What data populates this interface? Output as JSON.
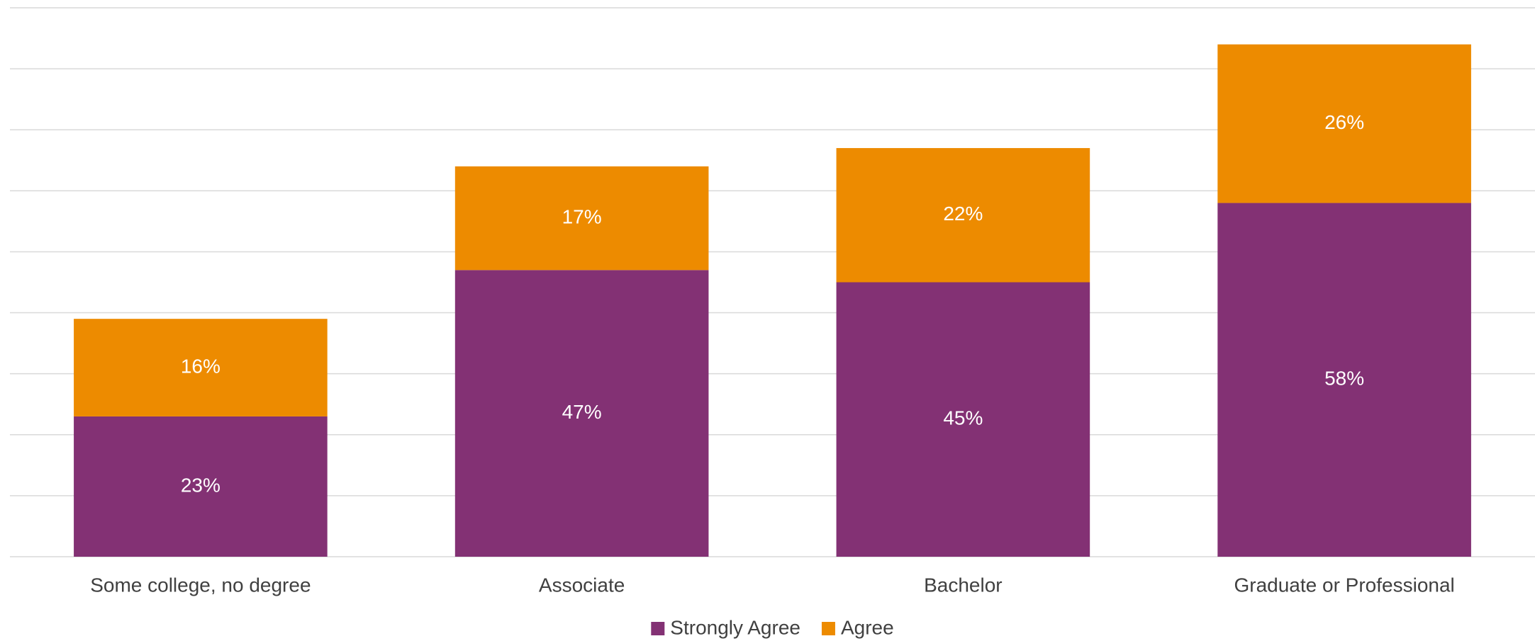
{
  "chart_data": {
    "type": "stacked_bar",
    "categories": [
      "Some college, no degree",
      "Associate",
      "Bachelor",
      "Graduate or Professional"
    ],
    "series": [
      {
        "name": "Strongly Agree",
        "color": "#833174",
        "values": [
          23,
          47,
          45,
          58
        ],
        "value_labels": [
          "23%",
          "47%",
          "45%",
          "58%"
        ]
      },
      {
        "name": "Agree",
        "color": "#ED8B00",
        "values": [
          16,
          17,
          22,
          26
        ],
        "value_labels": [
          "16%",
          "17%",
          "22%",
          "26%"
        ]
      }
    ],
    "ylim": [
      0,
      90
    ],
    "yticks": [
      0,
      10,
      20,
      30,
      40,
      50,
      60,
      70,
      80,
      90
    ],
    "grid": true,
    "legend": "bottom"
  }
}
